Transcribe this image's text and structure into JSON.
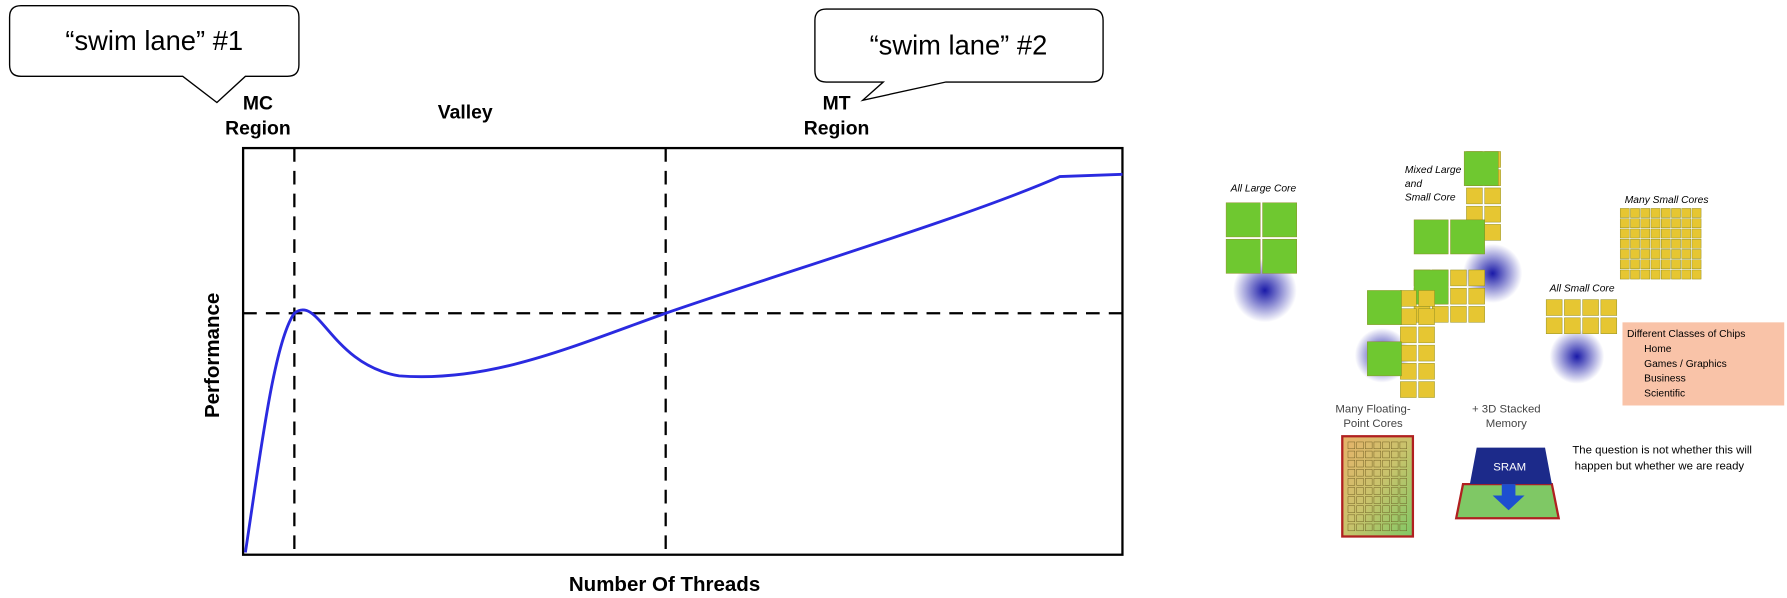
{
  "chart": {
    "callouts": [
      "“swim lane” #1",
      "“swim lane” #2"
    ],
    "regions": [
      [
        "MC",
        "Region"
      ],
      [
        "Valley"
      ],
      [
        "MT",
        "Region"
      ]
    ],
    "y_axis_label": "Performance",
    "x_axis_label": "Number Of Threads"
  },
  "diagram": {
    "all_large_core": "All Large Core",
    "mixed": [
      "Mixed Large",
      "and",
      "Small Core"
    ],
    "many_small_cores": "Many Small Cores",
    "all_small_core": "All Small Core",
    "chip_classes": {
      "title": "Different Classes of Chips",
      "items": [
        "Home",
        "Games / Graphics",
        "Business",
        "Scientific"
      ]
    },
    "floating_point": [
      "Many Floating-",
      "Point Cores"
    ],
    "stacked_memory": [
      "+ 3D Stacked",
      "Memory"
    ],
    "sram": "SRAM",
    "question": [
      "The question is not whether this will",
      "happen but whether we are ready"
    ]
  }
}
